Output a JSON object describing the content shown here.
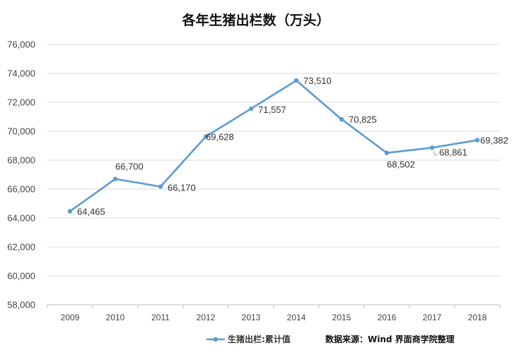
{
  "chart_data": {
    "type": "line",
    "title": "各年生猪出栏数（万头）",
    "categories": [
      "2009",
      "2010",
      "2011",
      "2012",
      "2013",
      "2014",
      "2015",
      "2016",
      "2017",
      "2018"
    ],
    "series": [
      {
        "name": "生猪出栏:累计值",
        "values": [
          64465,
          66700,
          66170,
          69628,
          71557,
          73510,
          70825,
          68502,
          68861,
          69382
        ],
        "labels": [
          "64,465",
          "66,700",
          "66,170",
          "69,628",
          "71,557",
          "73,510",
          "70,825",
          "68,502",
          "68,861",
          "69,382"
        ],
        "color": "#5b9bd5"
      }
    ],
    "y_ticks": [
      "58,000",
      "60,000",
      "62,000",
      "64,000",
      "66,000",
      "68,000",
      "70,000",
      "72,000",
      "74,000",
      "76,000"
    ],
    "ylim": [
      58000,
      76000
    ],
    "grid": true,
    "legend_position": "bottom",
    "source": "数据来源：Wind  界面商学院整理"
  }
}
